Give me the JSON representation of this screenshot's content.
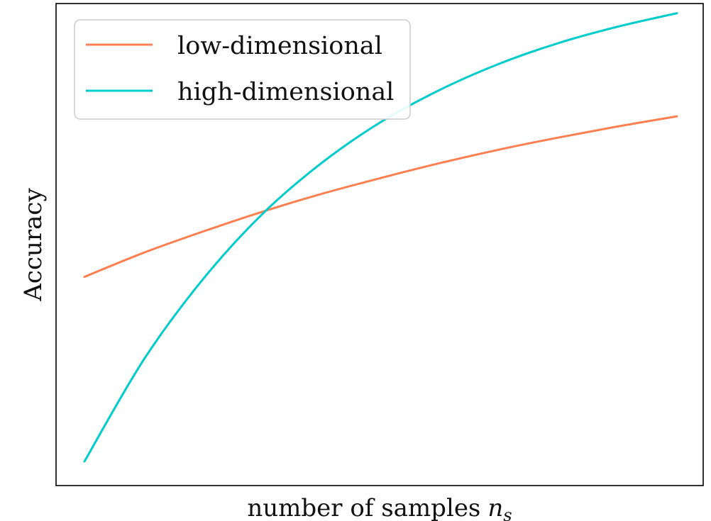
{
  "chart_data": {
    "type": "line",
    "title": "",
    "xlabel": "number of samples",
    "xlabel_math": "n",
    "xlabel_math_subscript": "s",
    "ylabel": "Accuracy",
    "x_ticks_visible": false,
    "y_ticks_visible": false,
    "grid": false,
    "legend_position": "top-left",
    "xlim": [
      0,
      1
    ],
    "ylim": [
      0,
      1
    ],
    "series": [
      {
        "name": "low-dimensional",
        "color": "#ff7f50",
        "x": [
          0,
          0.1,
          0.2,
          0.3,
          0.4,
          0.5,
          0.6,
          0.7,
          0.8,
          0.9,
          1.0
        ],
        "values": [
          0.433,
          0.483,
          0.527,
          0.568,
          0.605,
          0.638,
          0.669,
          0.697,
          0.722,
          0.745,
          0.766
        ]
      },
      {
        "name": "high-dimensional",
        "color": "#00cccc",
        "x": [
          0,
          0.1,
          0.2,
          0.3,
          0.4,
          0.5,
          0.6,
          0.7,
          0.8,
          0.9,
          1.0
        ],
        "values": [
          0.05,
          0.261,
          0.428,
          0.563,
          0.669,
          0.754,
          0.821,
          0.875,
          0.918,
          0.952,
          0.98
        ]
      }
    ]
  }
}
